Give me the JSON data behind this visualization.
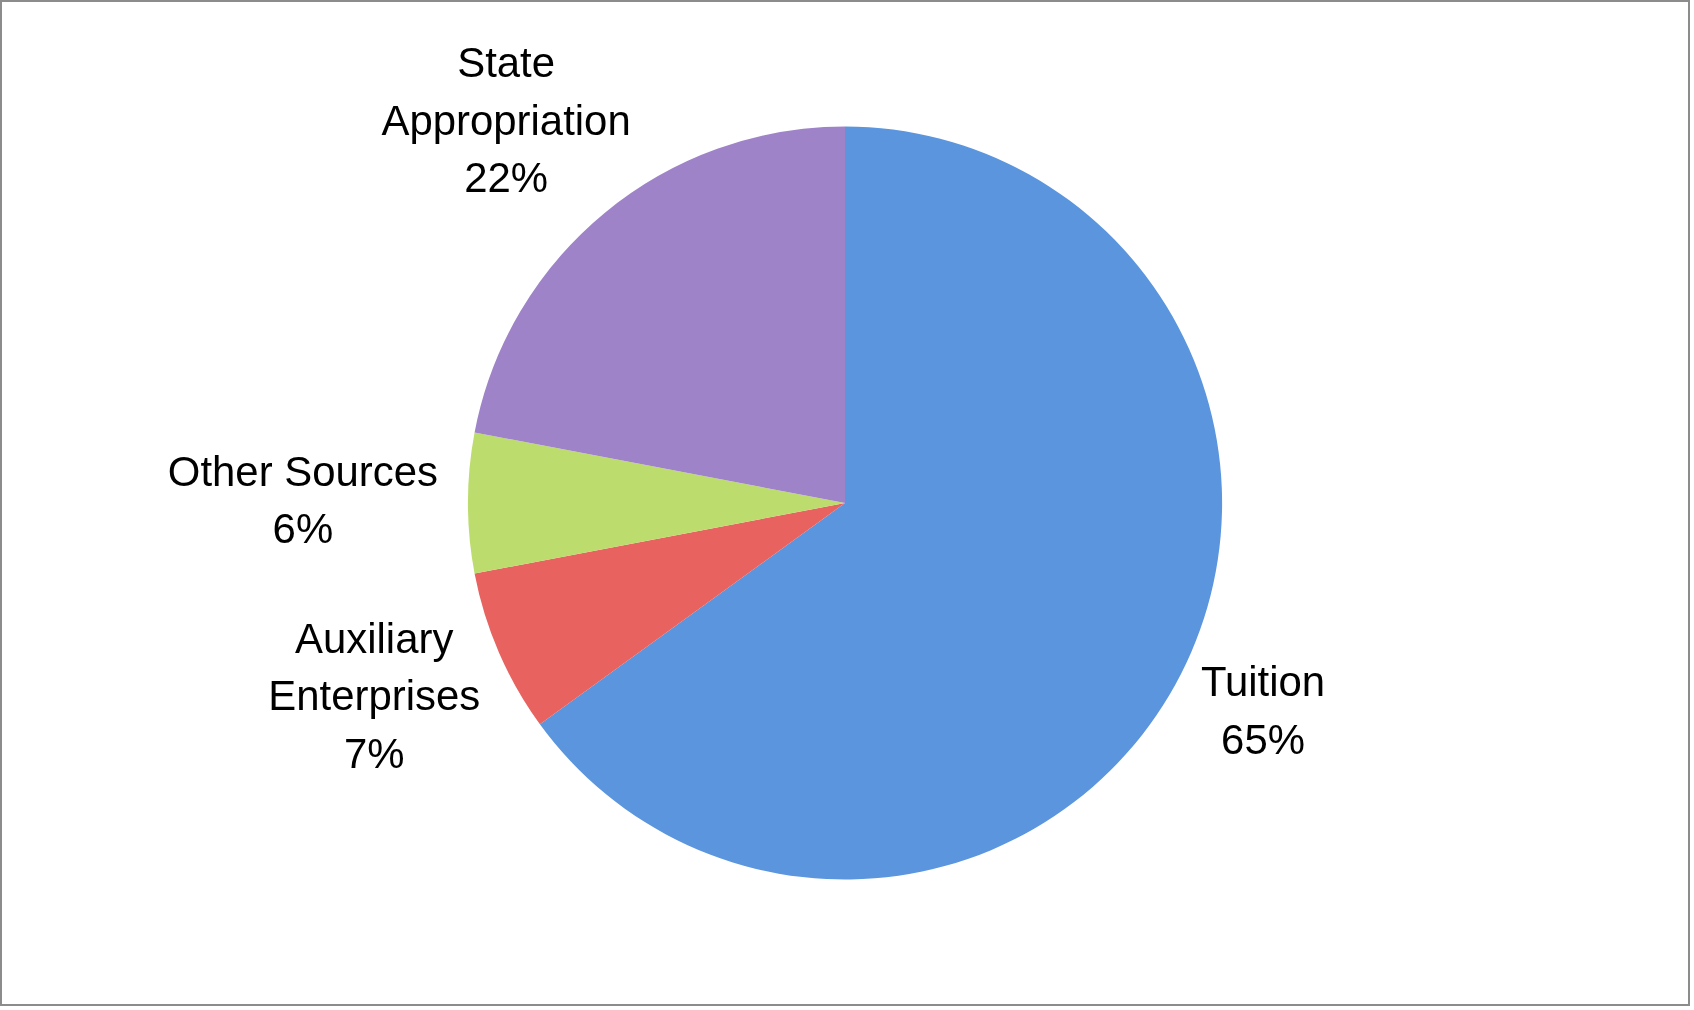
{
  "chart_data": {
    "type": "pie",
    "categories": [
      "Tuition",
      "Auxiliary Enterprises",
      "Other Sources",
      "State Appropriation"
    ],
    "values": [
      65,
      7,
      6,
      22
    ],
    "colors": [
      "#5b95dd",
      "#e8625f",
      "#bddc6e",
      "#9f83c8"
    ],
    "value_labels": [
      "65%",
      "7%",
      "6%",
      "22%"
    ],
    "legend": false
  }
}
